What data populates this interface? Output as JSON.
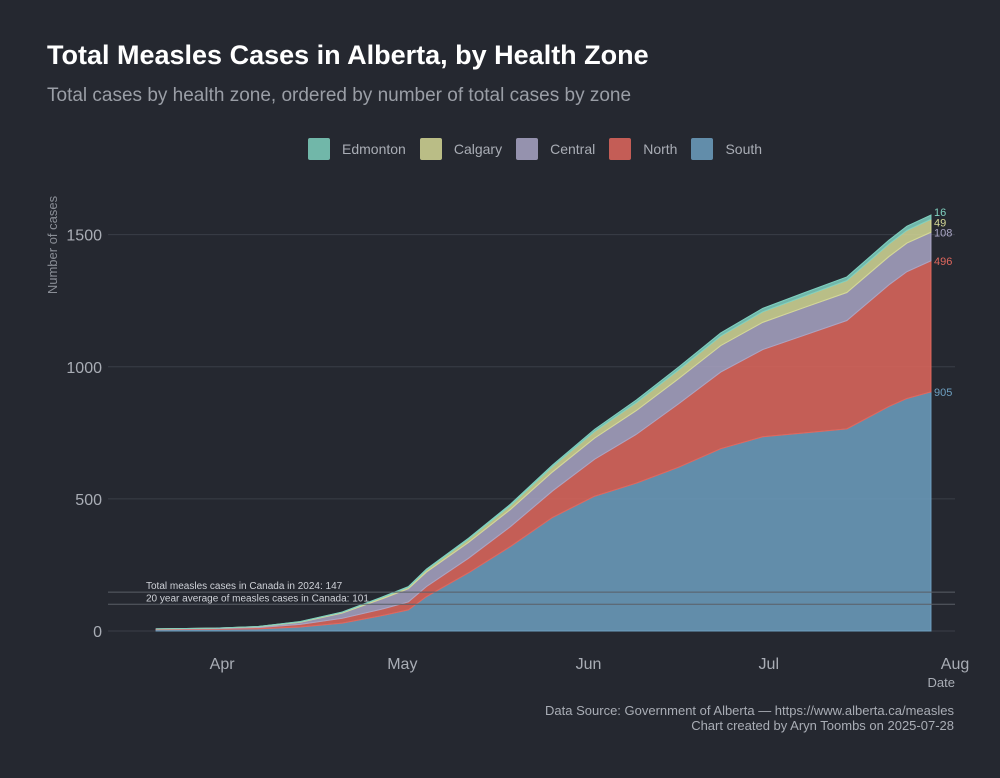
{
  "title": "Total Measles Cases in Alberta, by Health Zone",
  "subtitle": "Total cases by health zone, ordered by number of total cases by zone",
  "footer": {
    "source": "Data Source: Government of Alberta — https://www.alberta.ca/measles",
    "credit": "Chart created by Aryn Toombs on 2025-07-28"
  },
  "chart_data": {
    "type": "area",
    "stacked": true,
    "title": "Total Measles Cases in Alberta, by Health Zone",
    "subtitle": "Total cases by health zone, ordered by number of total cases by zone",
    "xlabel": "Date",
    "ylabel": "Number of cases",
    "x_ticks": [
      "Apr",
      "May",
      "Jun",
      "Jul",
      "Aug"
    ],
    "y_ticks": [
      0,
      500,
      1000,
      1500
    ],
    "ylim": [
      0,
      1650
    ],
    "xlim": [
      "2025-03-13",
      "2025-08-01"
    ],
    "grid": true,
    "legend_position": "top-center",
    "x": [
      "2025-03-21",
      "2025-03-31",
      "2025-04-07",
      "2025-04-14",
      "2025-04-21",
      "2025-04-28",
      "2025-05-02",
      "2025-05-05",
      "2025-05-12",
      "2025-05-19",
      "2025-05-26",
      "2025-06-02",
      "2025-06-09",
      "2025-06-16",
      "2025-06-23",
      "2025-06-30",
      "2025-07-07",
      "2025-07-14",
      "2025-07-21",
      "2025-07-24",
      "2025-07-28"
    ],
    "series": [
      {
        "name": "South",
        "color": "#6d9fc0",
        "values": [
          5,
          6,
          8,
          15,
          30,
          60,
          80,
          130,
          220,
          320,
          430,
          510,
          560,
          620,
          690,
          735,
          750,
          765,
          850,
          880,
          905
        ],
        "end_label": "905"
      },
      {
        "name": "North",
        "color": "#e0675d",
        "values": [
          2,
          3,
          5,
          10,
          18,
          25,
          30,
          38,
          55,
          75,
          100,
          140,
          185,
          240,
          290,
          330,
          370,
          410,
          460,
          480,
          496
        ],
        "end_label": "496"
      },
      {
        "name": "Central",
        "color": "#a9a5c4",
        "values": [
          1,
          2,
          3,
          8,
          20,
          40,
          50,
          55,
          60,
          65,
          72,
          80,
          90,
          95,
          100,
          103,
          105,
          106,
          107,
          108,
          108
        ],
        "end_label": "108"
      },
      {
        "name": "Calgary",
        "color": "#d4d896",
        "values": [
          0,
          0,
          1,
          2,
          3,
          5,
          6,
          8,
          12,
          15,
          20,
          25,
          30,
          33,
          36,
          40,
          42,
          45,
          47,
          48,
          49
        ],
        "end_label": "49"
      },
      {
        "name": "Edmonton",
        "color": "#7fd0bf",
        "values": [
          0,
          0,
          0,
          1,
          1,
          2,
          2,
          3,
          4,
          5,
          6,
          8,
          10,
          11,
          12,
          13,
          14,
          14,
          15,
          16,
          16
        ],
        "end_label": "16"
      }
    ],
    "reference_lines": [
      {
        "label": "Total measles cases in Canada in 2024: 147",
        "value": 147
      },
      {
        "label": "20 year average of measles cases in Canada: 101",
        "value": 101
      }
    ]
  }
}
